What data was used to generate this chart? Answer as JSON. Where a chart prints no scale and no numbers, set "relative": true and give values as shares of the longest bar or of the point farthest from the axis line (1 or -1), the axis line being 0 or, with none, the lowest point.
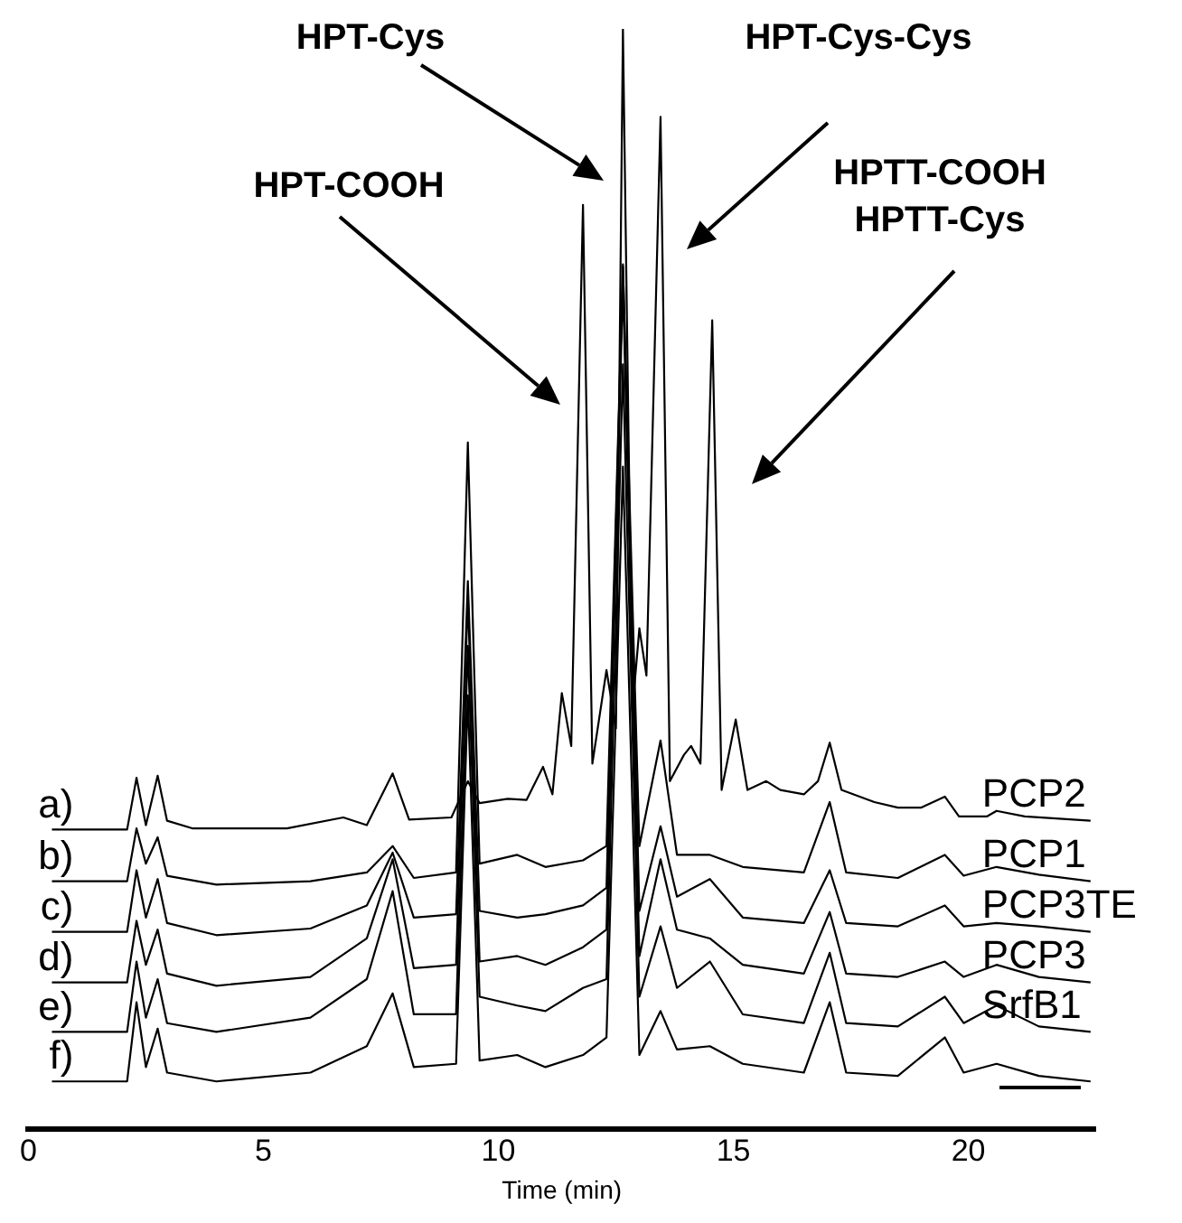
{
  "chart_data": {
    "type": "line",
    "relative": true,
    "xlabel": "Time (min)",
    "xlim": [
      0,
      22.7
    ],
    "xticks": [
      0,
      5,
      10,
      15,
      20
    ],
    "grid": false,
    "legend": false,
    "marker": "none",
    "line_style": "solid",
    "tick_labels": "x",
    "annotations": [
      "HPT-COOH",
      "HPT-Cys",
      "HPT-Cys-Cys",
      "HPTT-COOH\nHPTT-Cys",
      "a)",
      "b)",
      "c)",
      "d)",
      "e)",
      "f)"
    ],
    "series": [
      {
        "name": "PCP2",
        "color": "#000000",
        "x": [
          0.5,
          2.1,
          2.3,
          2.5,
          2.75,
          2.95,
          3.5,
          5.5,
          6.7,
          7.2,
          7.75,
          8.1,
          9.0,
          9.35,
          9.6,
          10.2,
          10.6,
          10.95,
          11.15,
          11.35,
          11.55,
          11.8,
          12.0,
          12.3,
          12.5,
          12.65,
          12.85,
          13.0,
          13.15,
          13.45,
          13.65,
          13.95,
          14.1,
          14.3,
          14.55,
          14.75,
          15.05,
          15.3,
          15.7,
          16.0,
          16.5,
          16.8,
          17.05,
          17.3,
          18.0,
          18.5,
          19.0,
          19.5,
          19.8,
          20.4,
          20.6,
          21.2,
          22.6
        ],
        "values": [
          0.272,
          0.272,
          0.319,
          0.276,
          0.321,
          0.28,
          0.273,
          0.273,
          0.283,
          0.276,
          0.323,
          0.281,
          0.283,
          0.316,
          0.296,
          0.3,
          0.299,
          0.329,
          0.304,
          0.396,
          0.348,
          0.84,
          0.332,
          0.417,
          0.364,
          1.0,
          0.38,
          0.455,
          0.412,
          0.92,
          0.316,
          0.34,
          0.348,
          0.332,
          0.735,
          0.308,
          0.372,
          0.308,
          0.316,
          0.308,
          0.304,
          0.316,
          0.351,
          0.308,
          0.297,
          0.292,
          0.292,
          0.302,
          0.284,
          0.284,
          0.289,
          0.284,
          0.28
        ]
      },
      {
        "name": "PCP1",
        "color": "#000000",
        "values": [
          0.225,
          0.225,
          0.273,
          0.241,
          0.265,
          0.23,
          0.222,
          0.225,
          0.233,
          0.257,
          0.228,
          0.233,
          0.624,
          0.241,
          0.249,
          0.238,
          0.244,
          0.257,
          0.784,
          0.257,
          0.353,
          0.249,
          0.249,
          0.238,
          0.233,
          0.297,
          0.233,
          0.228,
          0.249,
          0.23,
          0.238,
          0.231,
          0.225
        ]
      },
      {
        "name": "PCP3TE",
        "color": "#000000",
        "values": [
          0.179,
          0.179,
          0.235,
          0.192,
          0.227,
          0.187,
          0.176,
          0.182,
          0.203,
          0.251,
          0.192,
          0.195,
          0.498,
          0.198,
          0.192,
          0.195,
          0.203,
          0.219,
          0.786,
          0.198,
          0.275,
          0.211,
          0.227,
          0.192,
          0.187,
          0.235,
          0.187,
          0.184,
          0.203,
          0.184,
          0.187,
          0.184,
          0.179
        ]
      },
      {
        "name": "PCP3",
        "color": "#000000",
        "values": [
          0.133,
          0.133,
          0.189,
          0.149,
          0.181,
          0.141,
          0.13,
          0.138,
          0.173,
          0.245,
          0.146,
          0.149,
          0.484,
          0.152,
          0.157,
          0.149,
          0.165,
          0.181,
          0.772,
          0.157,
          0.245,
          0.181,
          0.173,
          0.149,
          0.141,
          0.197,
          0.141,
          0.138,
          0.152,
          0.138,
          0.149,
          0.138,
          0.133
        ]
      },
      {
        "name": "SrfB1",
        "color": "#000000",
        "values": [
          0.088,
          0.088,
          0.152,
          0.101,
          0.136,
          0.096,
          0.088,
          0.101,
          0.136,
          0.216,
          0.104,
          0.104,
          0.439,
          0.12,
          0.112,
          0.107,
          0.128,
          0.136,
          0.695,
          0.12,
          0.184,
          0.128,
          0.152,
          0.104,
          0.096,
          0.16,
          0.096,
          0.093,
          0.12,
          0.096,
          0.112,
          0.093,
          0.088
        ]
      },
      {
        "color": "#000000",
        "values": [
          0.043,
          0.043,
          0.115,
          0.056,
          0.091,
          0.051,
          0.043,
          0.051,
          0.075,
          0.123,
          0.056,
          0.059,
          0.394,
          0.062,
          0.067,
          0.056,
          0.067,
          0.083,
          0.602,
          0.067,
          0.107,
          0.072,
          0.075,
          0.059,
          0.051,
          0.115,
          0.051,
          0.048,
          0.083,
          0.051,
          0.059,
          0.048,
          0.043
        ]
      }
    ],
    "x": [
      0.5,
      2.1,
      2.3,
      2.5,
      2.75,
      2.95,
      4,
      6,
      7.2,
      7.75,
      8.2,
      9.1,
      9.35,
      9.6,
      10.4,
      11,
      11.8,
      12.3,
      12.65,
      13.0,
      13.45,
      13.8,
      14.5,
      15.2,
      16.5,
      17.05,
      17.4,
      18.5,
      19.5,
      19.9,
      20.6,
      21.5,
      22.6
    ]
  }
}
